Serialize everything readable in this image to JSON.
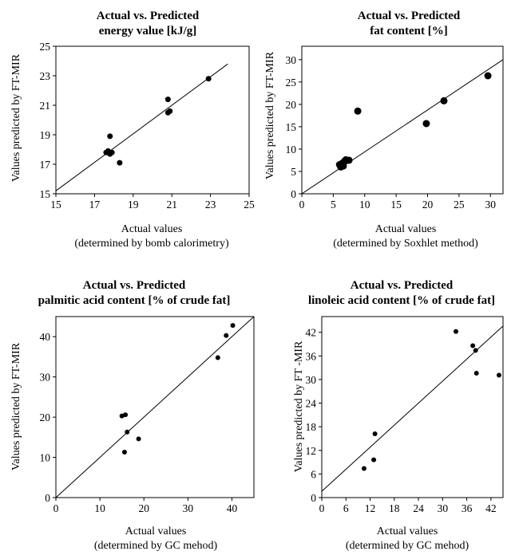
{
  "chart_data": [
    {
      "type": "scatter",
      "title_line1": "Actual vs. Predicted",
      "title_line2": "energy value [kJ/g]",
      "xlabel_line1": "Actual values",
      "xlabel_line2": "(determined by bomb calorimetry)",
      "ylabel": "Values predicted by FT-MIR",
      "xlim": [
        15,
        25
      ],
      "ylim": [
        15,
        25
      ],
      "xticks": [
        15,
        17,
        19,
        21,
        23,
        25
      ],
      "yticks": [
        15,
        17,
        19,
        21,
        23,
        25
      ],
      "x": [
        17.6,
        17.7,
        17.8,
        17.8,
        17.9,
        17.8,
        18.3,
        20.8,
        20.9,
        20.8,
        22.9
      ],
      "y": [
        17.8,
        17.9,
        18.9,
        17.7,
        17.8,
        17.7,
        17.1,
        21.4,
        20.6,
        20.5,
        22.8
      ],
      "fit_line": [
        [
          15,
          15.2
        ],
        [
          23.9,
          23.8
        ]
      ],
      "marker_size": 7
    },
    {
      "type": "scatter",
      "title_line1": "Actual vs. Predicted",
      "title_line2": "fat content [%]",
      "xlabel_line1": "Actual values",
      "xlabel_line2": "(determined by Soxhlet method)",
      "ylabel": "Values predicted by FT-MIR",
      "xlim": [
        0,
        32
      ],
      "ylim": [
        0,
        33
      ],
      "xticks": [
        0,
        5,
        10,
        15,
        20,
        25,
        30
      ],
      "yticks": [
        0,
        5,
        10,
        15,
        20,
        25,
        30
      ],
      "x": [
        6.0,
        6.2,
        6.4,
        6.6,
        6.8,
        7.0,
        7.5,
        8.9,
        19.8,
        22.6,
        29.6
      ],
      "y": [
        6.5,
        6.0,
        6.8,
        6.2,
        7.3,
        7.6,
        7.5,
        18.5,
        15.7,
        20.8,
        26.4
      ],
      "fit_line": [
        [
          0,
          0
        ],
        [
          32,
          30
        ]
      ],
      "marker_size": 9
    },
    {
      "type": "scatter",
      "title_line1": "Actual vs. Predicted",
      "title_line2": "palmitic acid content [% of crude fat]",
      "xlabel_line1": "Actual values",
      "xlabel_line2": "(determined by GC mehod)",
      "ylabel": "Values predicted by FT-MIR",
      "xlim": [
        0,
        45
      ],
      "ylim": [
        0,
        45
      ],
      "xticks": [
        0,
        10,
        20,
        30,
        40
      ],
      "yticks": [
        0,
        10,
        20,
        30,
        40
      ],
      "x": [
        15.0,
        15.8,
        16.2,
        15.6,
        18.8,
        36.8,
        38.7,
        40.2
      ],
      "y": [
        20.3,
        20.6,
        16.3,
        11.3,
        14.6,
        34.8,
        40.3,
        42.8
      ],
      "fit_line": [
        [
          0,
          0
        ],
        [
          45,
          45
        ]
      ],
      "marker_size": 6
    },
    {
      "type": "scatter",
      "title_line1": "Actual vs. Predicted",
      "title_line2": "linoleic acid content [% of crude fat]",
      "xlabel_line1": "Actual values",
      "xlabel_line2": "(determined by GC mehod)",
      "ylabel": "Values predicted by FT -MIR",
      "xlim": [
        0,
        45
      ],
      "ylim": [
        0,
        46
      ],
      "xticks": [
        0,
        6,
        12,
        18,
        24,
        30,
        36,
        42
      ],
      "yticks": [
        0,
        6,
        12,
        18,
        24,
        30,
        36,
        42
      ],
      "x": [
        10.5,
        12.9,
        13.2,
        33.3,
        37.5,
        38.2,
        38.4,
        44.0
      ],
      "y": [
        7.4,
        9.6,
        16.2,
        42.2,
        38.6,
        37.4,
        31.6,
        31.1
      ],
      "fit_line": [
        [
          0,
          1.6
        ],
        [
          45,
          43.6
        ]
      ],
      "marker_size": 6
    }
  ]
}
